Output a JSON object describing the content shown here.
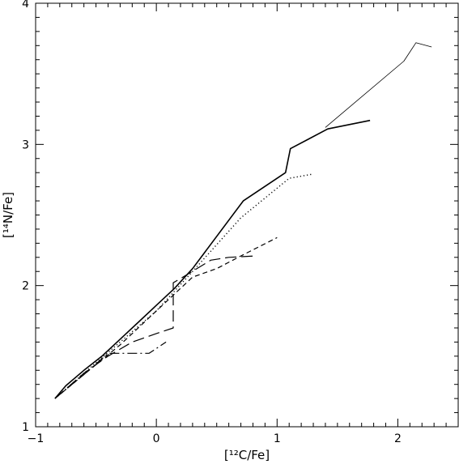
{
  "chart_data": {
    "type": "line",
    "title": "",
    "xlabel": "[¹²C/Fe]",
    "ylabel": "[¹⁴N/Fe]",
    "xlim": [
      -1,
      2.5
    ],
    "ylim": [
      1,
      4
    ],
    "xticks": [
      -1,
      0,
      1,
      2
    ],
    "xtick_labels": [
      "−1",
      "0",
      "1",
      "2"
    ],
    "yticks": [
      1,
      2,
      3,
      4
    ],
    "ytick_labels": [
      "1",
      "2",
      "3",
      "4"
    ],
    "grid": false,
    "legend": "none",
    "series": [
      {
        "style": "solid-thick",
        "x": [
          -0.84,
          -0.75,
          -0.6,
          -0.45,
          -0.3,
          -0.15,
          0.0,
          0.15,
          0.3,
          0.72,
          1.07,
          1.11,
          1.42,
          1.77
        ],
        "y": [
          1.2,
          1.29,
          1.4,
          1.5,
          1.62,
          1.74,
          1.86,
          1.98,
          2.12,
          2.6,
          2.8,
          2.97,
          3.11,
          3.17
        ]
      },
      {
        "style": "solid-thin",
        "x": [
          1.4,
          2.05,
          2.15,
          2.28
        ],
        "y": [
          3.12,
          3.59,
          3.72,
          3.69
        ]
      },
      {
        "style": "dotted",
        "x": [
          -0.84,
          -0.6,
          -0.3,
          0.0,
          0.3,
          0.7,
          1.1,
          1.3
        ],
        "y": [
          1.2,
          1.38,
          1.6,
          1.82,
          2.1,
          2.48,
          2.76,
          2.79
        ]
      },
      {
        "style": "short-dash",
        "x": [
          -0.84,
          -0.6,
          -0.3,
          0.0,
          0.3,
          0.5,
          0.7,
          1.0
        ],
        "y": [
          1.2,
          1.37,
          1.58,
          1.82,
          2.06,
          2.12,
          2.21,
          2.34
        ]
      },
      {
        "style": "long-dash",
        "x": [
          -0.84,
          -0.6,
          -0.4,
          -0.2,
          0.0,
          0.14,
          0.14,
          0.22,
          0.45,
          0.6,
          0.82
        ],
        "y": [
          1.2,
          1.38,
          1.5,
          1.6,
          1.66,
          1.7,
          2.02,
          2.06,
          2.18,
          2.2,
          2.21
        ]
      },
      {
        "style": "dash-dot",
        "x": [
          -0.84,
          -0.6,
          -0.4,
          -0.06,
          0.08
        ],
        "y": [
          1.2,
          1.37,
          1.52,
          1.52,
          1.6
        ]
      }
    ]
  }
}
